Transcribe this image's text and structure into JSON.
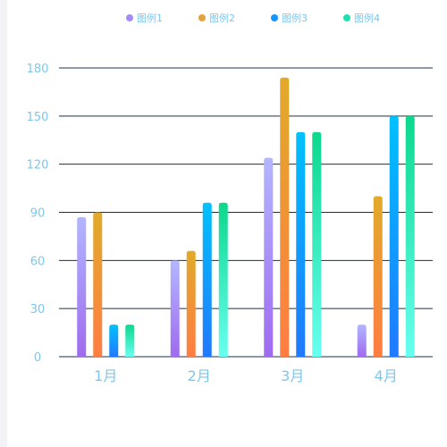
{
  "chart_data": {
    "type": "bar",
    "categories": [
      "1月",
      "2月",
      "3月",
      "4月"
    ],
    "series": [
      {
        "name": "图例1",
        "values": [
          87,
          60,
          124,
          20
        ],
        "color_top": "#b3b6ff",
        "color_bottom": "#9f6bf0",
        "legend_color": "#a58bf5"
      },
      {
        "name": "图例2",
        "values": [
          90,
          66,
          174,
          100
        ],
        "color_top": "#e1aa2a",
        "color_bottom": "#ff7d43",
        "legend_color": "#e8a13a"
      },
      {
        "name": "图例3",
        "values": [
          20,
          96,
          140,
          150
        ],
        "color_top": "#00c1ff",
        "color_bottom": "#2079ff",
        "legend_color": "#1296ff"
      },
      {
        "name": "图例4",
        "values": [
          20,
          96,
          140,
          150
        ],
        "color_top": "#0cd88d",
        "color_bottom": "#68fff0",
        "legend_color": "#1fe0b0"
      }
    ],
    "ylim": [
      0,
      180
    ],
    "y_ticks": [
      0,
      30,
      60,
      90,
      120,
      150,
      180
    ],
    "grid": true,
    "legend_position": "top",
    "axis_label_color": "#7cc7ee",
    "grid_color": "#17324d"
  }
}
